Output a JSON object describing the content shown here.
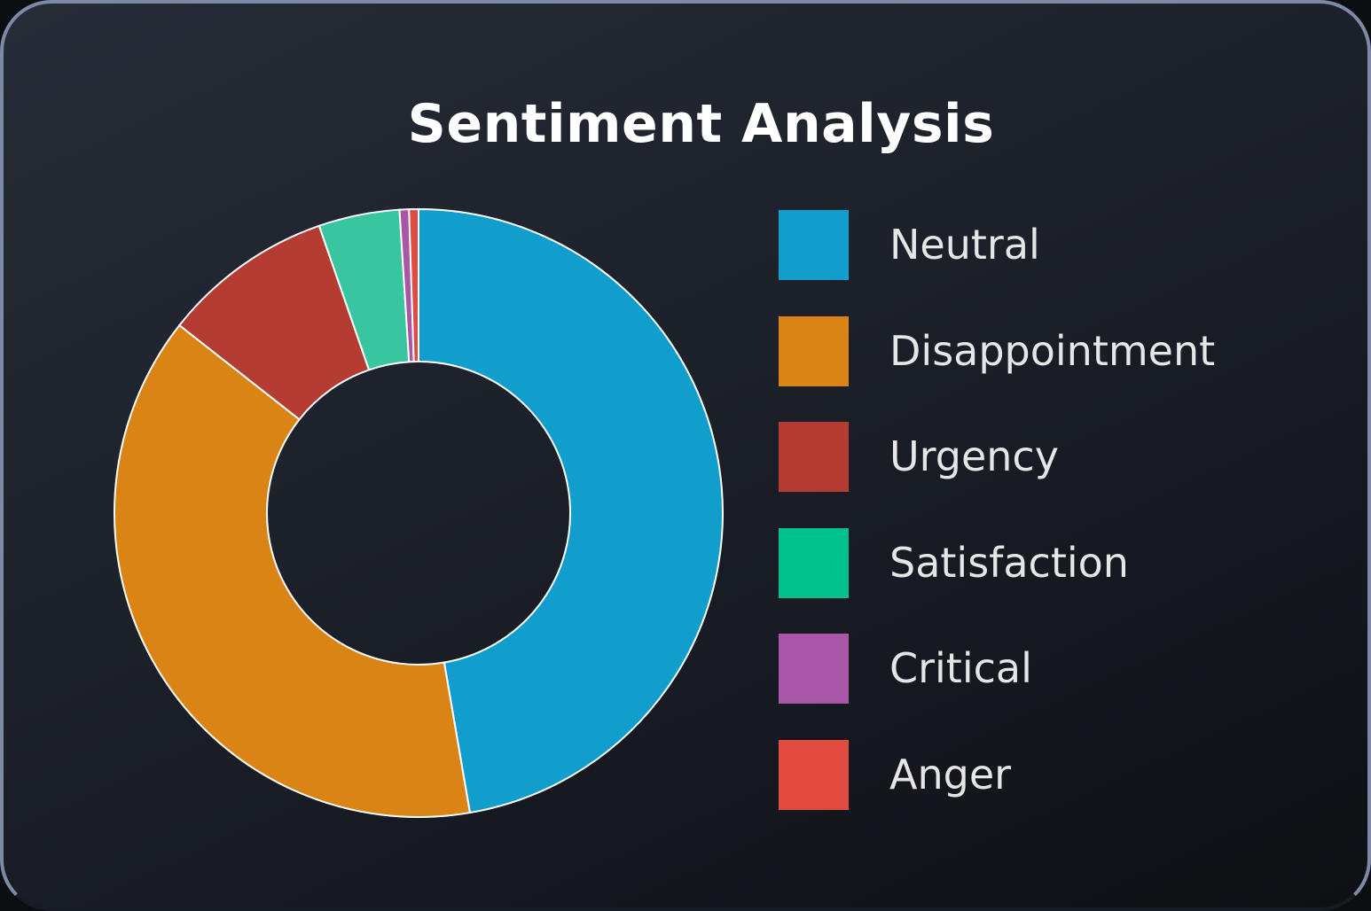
{
  "chart_data": {
    "type": "pie",
    "title": "Sentiment Analysis",
    "subtype": "donut",
    "start_angle_deg": 0,
    "direction": "clockwise",
    "slice_border_color": "#ffffff",
    "legend_position": "right",
    "series": [
      {
        "name": "Neutral",
        "value": 47.3,
        "color": "#119ecc"
      },
      {
        "name": "Disappointment",
        "value": 38.3,
        "color": "#d98415"
      },
      {
        "name": "Urgency",
        "value": 9.1,
        "color": "#b53c33"
      },
      {
        "name": "Satisfaction",
        "value": 4.3,
        "color": "#38c6a0"
      },
      {
        "name": "Critical",
        "value": 0.5,
        "color": "#a955a8"
      },
      {
        "name": "Anger",
        "value": 0.5,
        "color": "#e14b40"
      }
    ],
    "legend_colors": [
      "#119ecc",
      "#d98415",
      "#b53c33",
      "#00c08c",
      "#a955a8",
      "#e14b40"
    ]
  }
}
